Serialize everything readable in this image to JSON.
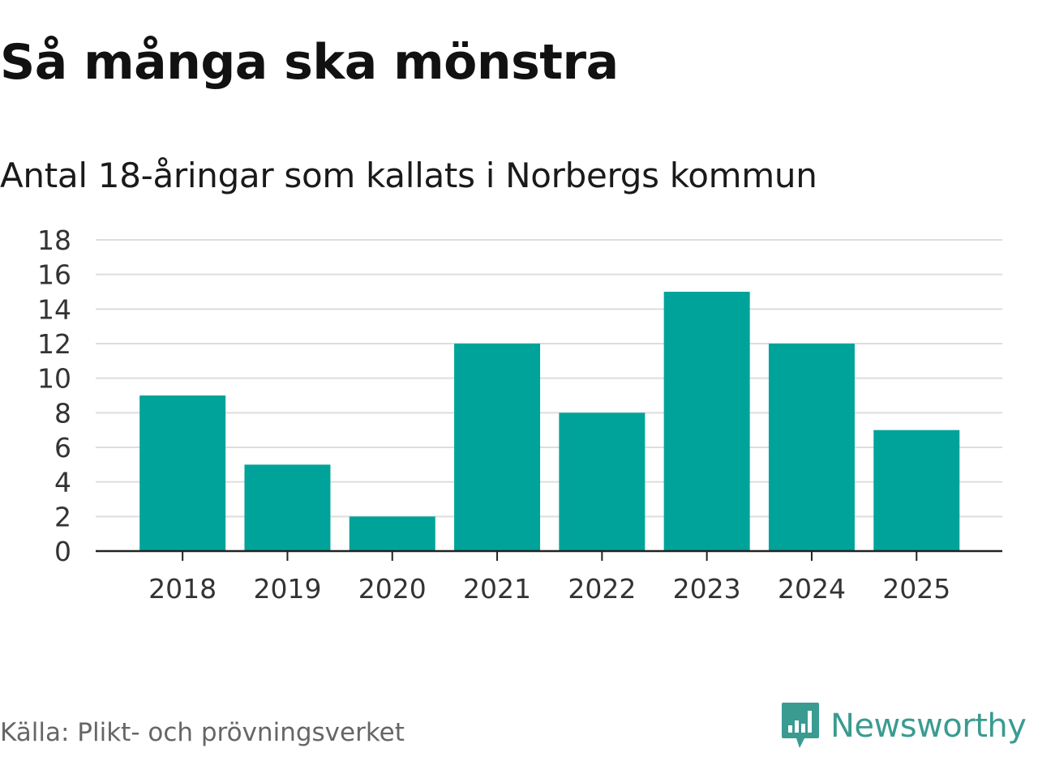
{
  "colors": {
    "bar": "#00a39a",
    "grid": "#dddddd",
    "axis": "#222222",
    "brand": "#3a9b91"
  },
  "chart_data": {
    "type": "bar",
    "title": "Så många ska mönstra",
    "subtitle": "Antal 18-åringar som kallats i Norbergs kommun",
    "categories": [
      "2018",
      "2019",
      "2020",
      "2021",
      "2022",
      "2023",
      "2024",
      "2025"
    ],
    "values": [
      9,
      5,
      2,
      12,
      8,
      15,
      12,
      7
    ],
    "ylim": [
      0,
      18
    ],
    "yticks": [
      "0",
      "2",
      "4",
      "6",
      "8",
      "10",
      "12",
      "14",
      "16",
      "18"
    ],
    "xlabel": "",
    "ylabel": "",
    "grid": true
  },
  "footer": {
    "source": "Källa: Plikt- och prövningsverket",
    "brand": "Newsworthy",
    "brand_icon": "newsworthy-logo-icon"
  }
}
